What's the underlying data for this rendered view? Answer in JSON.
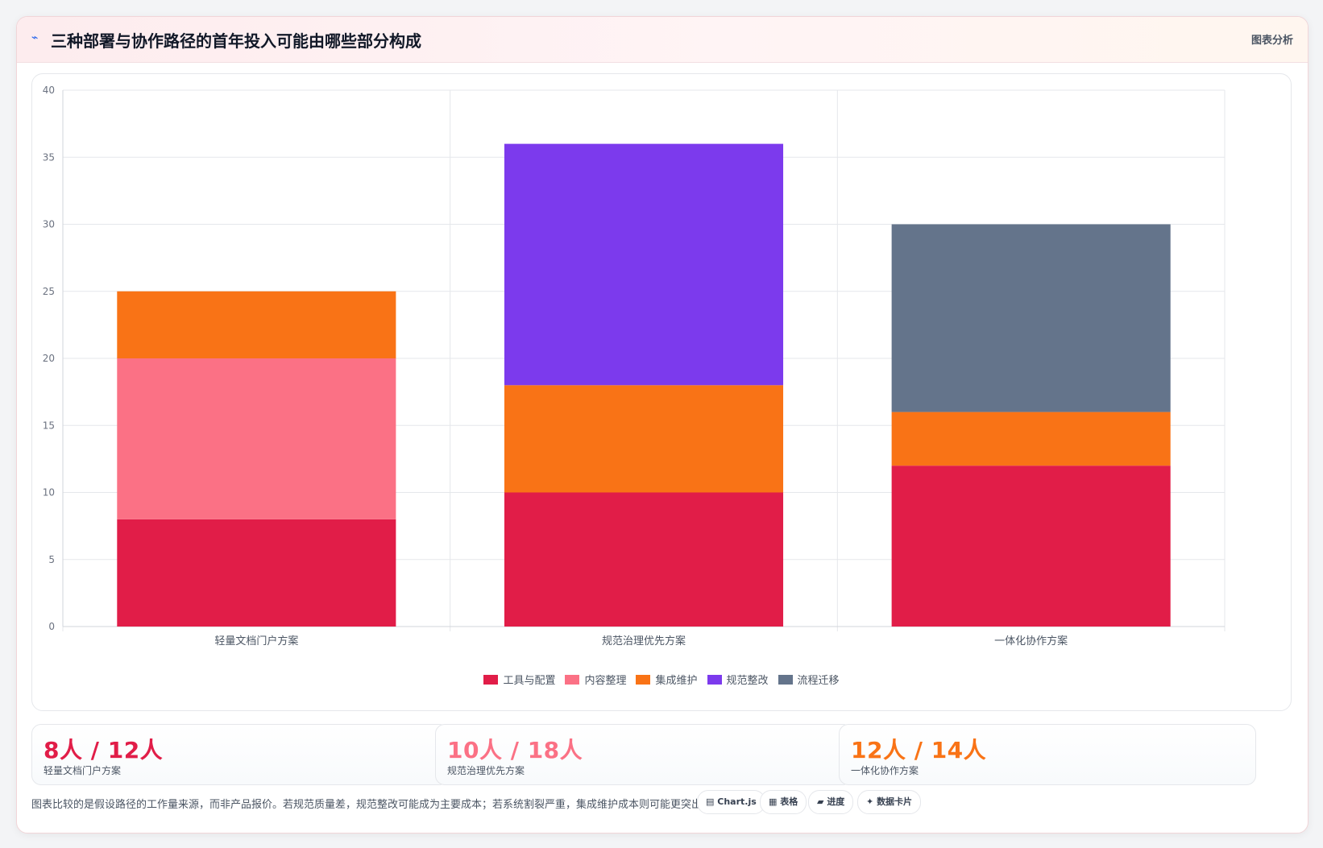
{
  "header": {
    "icon": "chart-icon",
    "title": "三种部署与协作路径的首年投入可能由哪些部分构成",
    "action_label": "图表分析"
  },
  "chart_data": {
    "type": "bar",
    "stacked": true,
    "categories": [
      "轻量文档门户方案",
      "规范治理优先方案",
      "一体化协作方案"
    ],
    "series": [
      {
        "name": "工具与配置",
        "color": "#e11d48",
        "values": [
          8,
          10,
          12
        ]
      },
      {
        "name": "内容整理",
        "color": "#fb7185",
        "values": [
          12,
          0,
          0
        ]
      },
      {
        "name": "集成维护",
        "color": "#f97316",
        "values": [
          5,
          8,
          4
        ]
      },
      {
        "name": "规范整改",
        "color": "#7c3aed",
        "values": [
          0,
          18,
          0
        ]
      },
      {
        "name": "流程迁移",
        "color": "#64748b",
        "values": [
          0,
          0,
          14
        ]
      }
    ],
    "ylim": [
      0,
      40
    ],
    "yticks": [
      0,
      5,
      10,
      15,
      20,
      25,
      30,
      35,
      40
    ],
    "grid": true,
    "legend": "bottom"
  },
  "stats": [
    {
      "value": "8人 / 12人",
      "label": "轻量文档门户方案",
      "color": "#e11d48"
    },
    {
      "value": "10人 / 18人",
      "label": "规范治理优先方案",
      "color": "#fb7185"
    },
    {
      "value": "12人 / 14人",
      "label": "一体化协作方案",
      "color": "#f97316"
    }
  ],
  "footer": {
    "note": "图表比较的是假设路径的工作量来源，而非产品报价。若规范质量差，规范整改可能成为主要成本；若系统割裂严重，集成维护成本则可能更突出。",
    "chips": [
      {
        "icon": "chart-icon",
        "label": "Chart.js"
      },
      {
        "icon": "table-icon",
        "label": "表格"
      },
      {
        "icon": "progress-icon",
        "label": "进度"
      },
      {
        "icon": "sparkle-icon",
        "label": "数据卡片"
      }
    ]
  }
}
